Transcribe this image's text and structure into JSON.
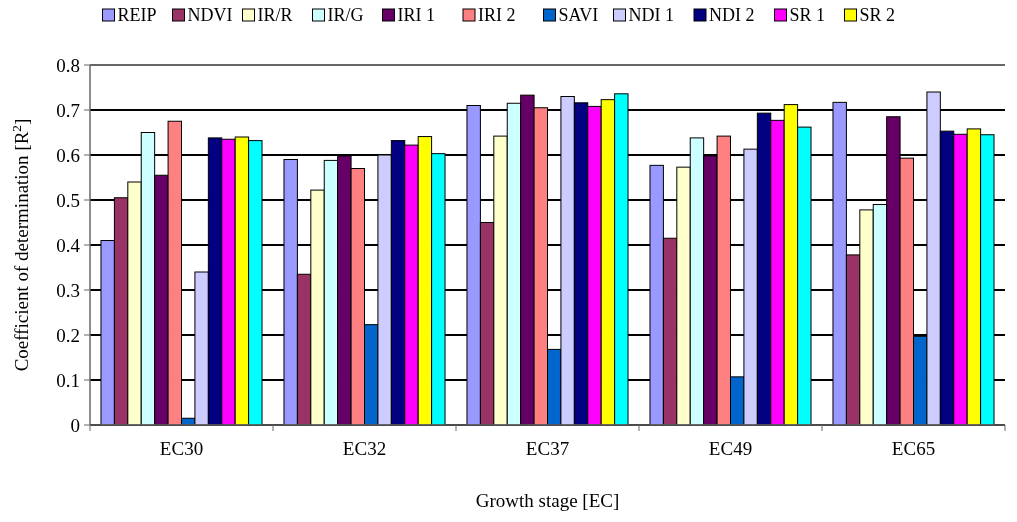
{
  "chart_data": {
    "type": "bar",
    "xlabel": "Growth stage [EC]",
    "ylabel": "Coefficient of determination [R$^{2}$]",
    "categories": [
      "EC30",
      "EC32",
      "EC37",
      "EC49",
      "EC65"
    ],
    "ylim": [
      0,
      0.8
    ],
    "yticks": [
      {
        "value": 0,
        "label": "0"
      },
      0.1,
      0.2,
      0.3,
      0.4,
      0.5,
      0.6,
      0.7,
      0.8
    ],
    "grid": "y",
    "legend": "top",
    "series": [
      {
        "name": "REIP",
        "color": "#9999ff",
        "values": [
          0.41,
          0.59,
          0.71,
          0.577,
          0.717
        ]
      },
      {
        "name": "NDVI",
        "color": "#993366",
        "values": [
          0.505,
          0.335,
          0.45,
          0.415,
          0.378
        ]
      },
      {
        "name": "IR/R",
        "color": "#ffffcc",
        "values": [
          0.54,
          0.522,
          0.642,
          0.573,
          0.478
        ]
      },
      {
        "name": "IR/G",
        "color": "#ccffff",
        "values": [
          0.65,
          0.588,
          0.715,
          0.638,
          0.49
        ]
      },
      {
        "name": "IRI 1",
        "color": "#660066",
        "values": [
          0.555,
          0.598,
          0.733,
          0.598,
          0.685
        ]
      },
      {
        "name": "IRI 2",
        "color": "#ff8080",
        "values": [
          0.675,
          0.57,
          0.705,
          0.642,
          0.593
        ]
      },
      {
        "name": "SAVI",
        "color": "#0066cc",
        "values": [
          0.015,
          0.223,
          0.168,
          0.107,
          0.197
        ]
      },
      {
        "name": "NDI 1",
        "color": "#ccccff",
        "values": [
          0.34,
          0.6,
          0.73,
          0.613,
          0.74
        ]
      },
      {
        "name": "NDI 2",
        "color": "#000080",
        "values": [
          0.638,
          0.632,
          0.716,
          0.693,
          0.653
        ]
      },
      {
        "name": "SR 1",
        "color": "#ff00ff",
        "values": [
          0.635,
          0.622,
          0.708,
          0.677,
          0.646
        ]
      },
      {
        "name": "SR 2",
        "color": "#ffff00",
        "values": [
          0.64,
          0.641,
          0.723,
          0.712,
          0.658
        ]
      },
      {
        "color": "#00ffff",
        "values": [
          0.632,
          0.603,
          0.736,
          0.662,
          0.645
        ]
      }
    ]
  }
}
